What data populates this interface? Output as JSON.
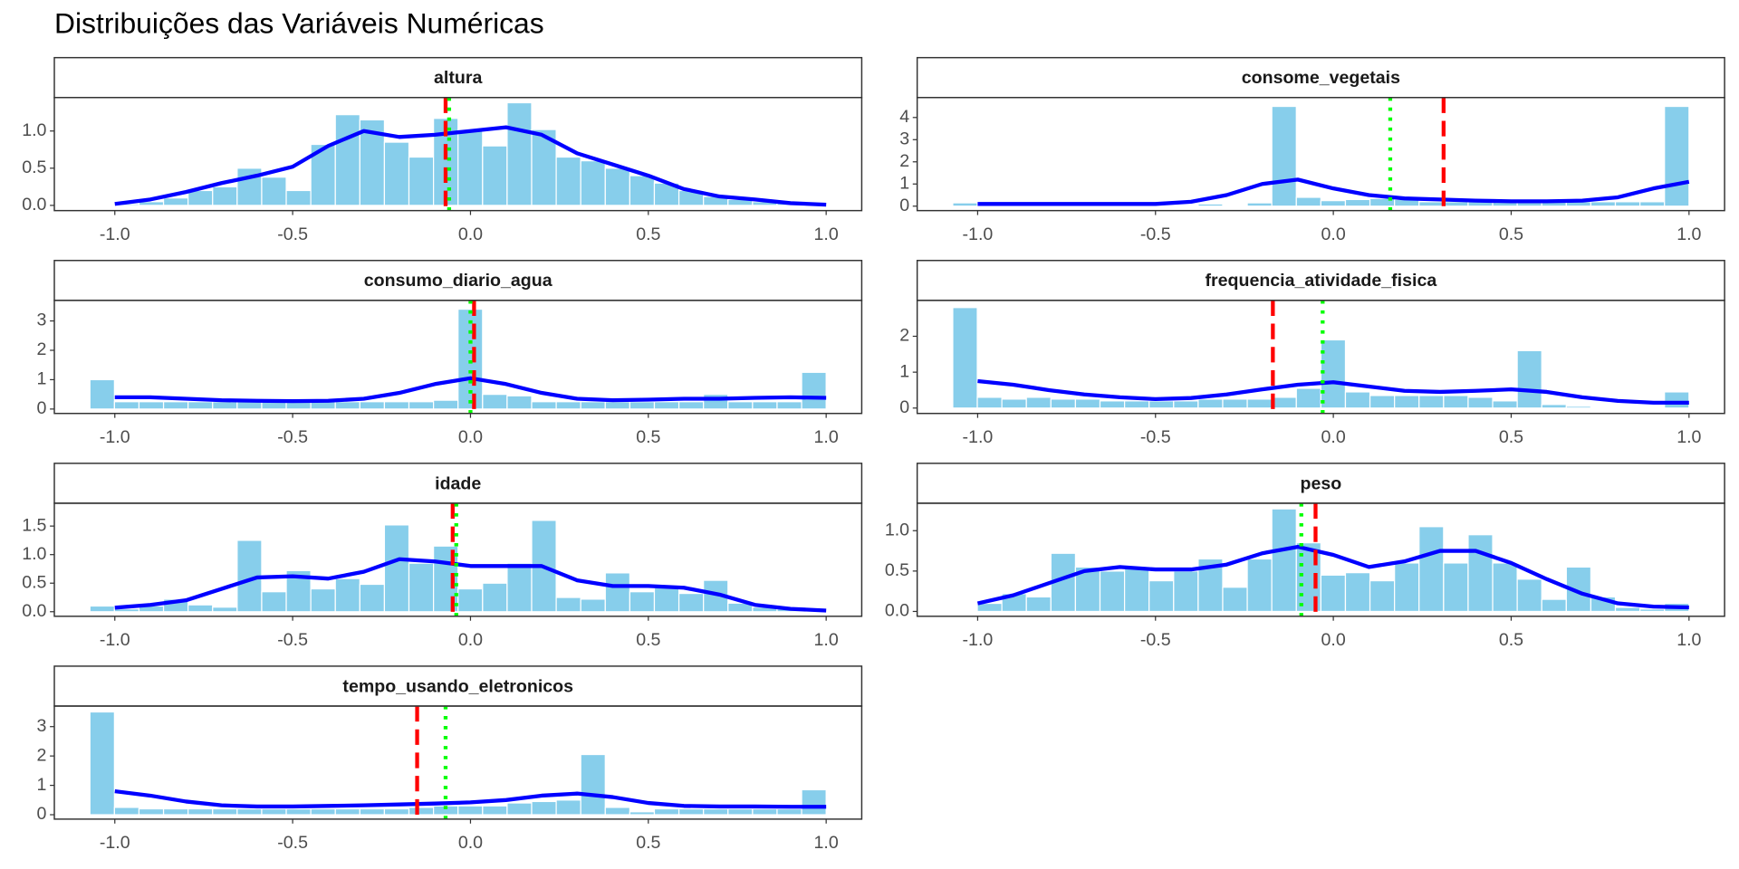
{
  "title": "Distribuições das Variáveis Numéricas",
  "chart_data": [
    {
      "type": "histogram",
      "title": "altura",
      "color": "#87ceeb",
      "line_color": "#0000ff",
      "mean_color": "#ff0000",
      "median_color": "#00ff00",
      "bins": [
        -1.07,
        -1.001,
        -0.932,
        -0.863,
        -0.794,
        -0.725,
        -0.656,
        -0.587,
        -0.518,
        -0.449,
        -0.38,
        -0.311,
        -0.242,
        -0.173,
        -0.104,
        -0.035,
        0.034,
        0.103,
        0.172,
        0.241,
        0.31,
        0.379,
        0.448,
        0.517,
        0.586,
        0.655,
        0.724,
        0.793,
        0.862,
        0.931,
        1.0
      ],
      "values": [
        0,
        0.02,
        0.05,
        0.1,
        0.2,
        0.25,
        0.5,
        0.38,
        0.2,
        0.82,
        1.22,
        1.15,
        0.85,
        0.65,
        1.17,
        1.0,
        0.8,
        1.38,
        1.02,
        0.65,
        0.6,
        0.5,
        0.4,
        0.3,
        0.2,
        0.12,
        0.08,
        0.05,
        0.03,
        0.02
      ],
      "density_x": [
        -1,
        -0.9,
        -0.8,
        -0.7,
        -0.6,
        -0.5,
        -0.4,
        -0.3,
        -0.2,
        -0.1,
        0,
        0.1,
        0.2,
        0.3,
        0.4,
        0.5,
        0.6,
        0.7,
        0.8,
        0.9,
        1
      ],
      "density_y": [
        0.02,
        0.08,
        0.18,
        0.3,
        0.4,
        0.52,
        0.8,
        1.0,
        0.92,
        0.95,
        1.0,
        1.05,
        0.95,
        0.7,
        0.55,
        0.4,
        0.22,
        0.12,
        0.08,
        0.03,
        0.01
      ],
      "mean": -0.07,
      "median": -0.06,
      "xlim": [
        -1.17,
        1.1
      ],
      "xticks": [
        {
          "value": -1,
          "label": "-1.0"
        },
        -0.5,
        {
          "value": 0,
          "label": "0.0"
        },
        0.5,
        {
          "value": 1,
          "label": "1.0"
        }
      ],
      "ylim": [
        -0.07,
        1.45
      ],
      "yticks": [
        {
          "value": 0,
          "label": "0.0"
        },
        0.5,
        {
          "value": 1,
          "label": "1.0"
        }
      ]
    },
    {
      "type": "histogram",
      "title": "consome_vegetais",
      "color": "#87ceeb",
      "line_color": "#0000ff",
      "mean_color": "#ff0000",
      "median_color": "#00ff00",
      "bins": [
        -1.07,
        -1.001,
        -0.932,
        -0.863,
        -0.794,
        -0.725,
        -0.656,
        -0.587,
        -0.518,
        -0.449,
        -0.38,
        -0.311,
        -0.242,
        -0.173,
        -0.104,
        -0.035,
        0.034,
        0.103,
        0.172,
        0.241,
        0.31,
        0.379,
        0.448,
        0.517,
        0.586,
        0.655,
        0.724,
        0.793,
        0.862,
        0.931,
        1.0
      ],
      "values": [
        0.15,
        0.02,
        0.02,
        0.02,
        0.02,
        0.02,
        0.02,
        0.02,
        0.02,
        0.02,
        0.1,
        0.02,
        0.15,
        4.5,
        0.4,
        0.25,
        0.3,
        0.35,
        0.3,
        0.2,
        0.2,
        0.2,
        0.2,
        0.2,
        0.2,
        0.2,
        0.2,
        0.2,
        0.2,
        4.5
      ],
      "density_x": [
        -1,
        -0.9,
        -0.8,
        -0.7,
        -0.6,
        -0.5,
        -0.4,
        -0.3,
        -0.2,
        -0.1,
        0,
        0.1,
        0.2,
        0.3,
        0.4,
        0.5,
        0.6,
        0.7,
        0.8,
        0.9,
        1
      ],
      "density_y": [
        0.1,
        0.1,
        0.1,
        0.1,
        0.1,
        0.1,
        0.2,
        0.5,
        1.0,
        1.2,
        0.8,
        0.5,
        0.35,
        0.3,
        0.25,
        0.22,
        0.22,
        0.25,
        0.4,
        0.8,
        1.1
      ],
      "mean": 0.31,
      "median": 0.16,
      "xlim": [
        -1.17,
        1.1
      ],
      "xticks": [
        {
          "value": -1,
          "label": "-1.0"
        },
        -0.5,
        {
          "value": 0,
          "label": "0.0"
        },
        0.5,
        {
          "value": 1,
          "label": "1.0"
        }
      ],
      "ylim": [
        -0.2,
        4.9
      ],
      "yticks": [
        0,
        1,
        2,
        3,
        4
      ]
    },
    {
      "type": "histogram",
      "title": "consumo_diario_agua",
      "color": "#87ceeb",
      "line_color": "#0000ff",
      "mean_color": "#ff0000",
      "median_color": "#00ff00",
      "bins": [
        -1.07,
        -1.001,
        -0.932,
        -0.863,
        -0.794,
        -0.725,
        -0.656,
        -0.587,
        -0.518,
        -0.449,
        -0.38,
        -0.311,
        -0.242,
        -0.173,
        -0.104,
        -0.035,
        0.034,
        0.103,
        0.172,
        0.241,
        0.31,
        0.379,
        0.448,
        0.517,
        0.586,
        0.655,
        0.724,
        0.793,
        0.862,
        0.931,
        1.0
      ],
      "values": [
        1.0,
        0.25,
        0.25,
        0.25,
        0.25,
        0.25,
        0.25,
        0.25,
        0.25,
        0.25,
        0.25,
        0.25,
        0.25,
        0.25,
        0.3,
        3.4,
        0.5,
        0.45,
        0.25,
        0.25,
        0.25,
        0.25,
        0.25,
        0.25,
        0.25,
        0.5,
        0.25,
        0.25,
        0.25,
        1.25
      ],
      "density_x": [
        -1,
        -0.9,
        -0.8,
        -0.7,
        -0.6,
        -0.5,
        -0.4,
        -0.3,
        -0.2,
        -0.1,
        0,
        0.1,
        0.2,
        0.3,
        0.4,
        0.5,
        0.6,
        0.7,
        0.8,
        0.9,
        1
      ],
      "density_y": [
        0.4,
        0.4,
        0.35,
        0.3,
        0.28,
        0.27,
        0.28,
        0.35,
        0.55,
        0.85,
        1.05,
        0.85,
        0.55,
        0.35,
        0.3,
        0.32,
        0.35,
        0.35,
        0.38,
        0.4,
        0.38
      ],
      "mean": 0.01,
      "median": 0.0,
      "xlim": [
        -1.17,
        1.1
      ],
      "xticks": [
        {
          "value": -1,
          "label": "-1.0"
        },
        -0.5,
        {
          "value": 0,
          "label": "0.0"
        },
        0.5,
        {
          "value": 1,
          "label": "1.0"
        }
      ],
      "ylim": [
        -0.15,
        3.7
      ],
      "yticks": [
        0,
        1,
        2,
        3
      ]
    },
    {
      "type": "histogram",
      "title": "frequencia_atividade_fisica",
      "color": "#87ceeb",
      "line_color": "#0000ff",
      "mean_color": "#ff0000",
      "median_color": "#00ff00",
      "bins": [
        -1.07,
        -1.001,
        -0.932,
        -0.863,
        -0.794,
        -0.725,
        -0.656,
        -0.587,
        -0.518,
        -0.449,
        -0.38,
        -0.311,
        -0.242,
        -0.173,
        -0.104,
        -0.035,
        0.034,
        0.103,
        0.172,
        0.241,
        0.31,
        0.379,
        0.448,
        0.517,
        0.586,
        0.655,
        0.724,
        0.793,
        0.862,
        0.931,
        1.0
      ],
      "values": [
        2.8,
        0.3,
        0.25,
        0.3,
        0.25,
        0.25,
        0.2,
        0.2,
        0.2,
        0.2,
        0.25,
        0.25,
        0.25,
        0.3,
        0.55,
        1.9,
        0.45,
        0.35,
        0.35,
        0.35,
        0.35,
        0.3,
        0.2,
        1.6,
        0.1,
        0.05,
        0.02,
        0.02,
        0.02,
        0.45
      ],
      "density_x": [
        -1,
        -0.9,
        -0.8,
        -0.7,
        -0.6,
        -0.5,
        -0.4,
        -0.3,
        -0.2,
        -0.1,
        0,
        0.1,
        0.2,
        0.3,
        0.4,
        0.5,
        0.6,
        0.7,
        0.8,
        0.9,
        1
      ],
      "density_y": [
        0.75,
        0.65,
        0.5,
        0.38,
        0.3,
        0.25,
        0.28,
        0.38,
        0.52,
        0.65,
        0.72,
        0.6,
        0.48,
        0.45,
        0.48,
        0.52,
        0.45,
        0.3,
        0.2,
        0.15,
        0.15
      ],
      "mean": -0.17,
      "median": -0.03,
      "xlim": [
        -1.17,
        1.1
      ],
      "xticks": [
        {
          "value": -1,
          "label": "-1.0"
        },
        -0.5,
        {
          "value": 0,
          "label": "0.0"
        },
        0.5,
        {
          "value": 1,
          "label": "1.0"
        }
      ],
      "ylim": [
        -0.15,
        3.0
      ],
      "yticks": [
        0,
        1,
        2
      ]
    },
    {
      "type": "histogram",
      "title": "idade",
      "color": "#87ceeb",
      "line_color": "#0000ff",
      "mean_color": "#ff0000",
      "median_color": "#00ff00",
      "bins": [
        -1.07,
        -1.001,
        -0.932,
        -0.863,
        -0.794,
        -0.725,
        -0.656,
        -0.587,
        -0.518,
        -0.449,
        -0.38,
        -0.311,
        -0.242,
        -0.173,
        -0.104,
        -0.035,
        0.034,
        0.103,
        0.172,
        0.241,
        0.31,
        0.379,
        0.448,
        0.517,
        0.586,
        0.655,
        0.724,
        0.793,
        0.862,
        0.931,
        1.0
      ],
      "values": [
        0.1,
        0.05,
        0.1,
        0.22,
        0.12,
        0.08,
        1.25,
        0.35,
        0.72,
        0.4,
        0.58,
        0.48,
        1.52,
        0.85,
        1.15,
        0.4,
        0.5,
        0.85,
        1.6,
        0.25,
        0.22,
        0.68,
        0.35,
        0.42,
        0.32,
        0.55,
        0.15,
        0.08,
        0.05,
        0.03
      ],
      "density_x": [
        -1,
        -0.9,
        -0.8,
        -0.7,
        -0.6,
        -0.5,
        -0.4,
        -0.3,
        -0.2,
        -0.1,
        0,
        0.1,
        0.2,
        0.3,
        0.4,
        0.5,
        0.6,
        0.7,
        0.8,
        0.9,
        1
      ],
      "density_y": [
        0.07,
        0.12,
        0.2,
        0.4,
        0.6,
        0.62,
        0.58,
        0.7,
        0.92,
        0.88,
        0.8,
        0.8,
        0.8,
        0.55,
        0.45,
        0.45,
        0.42,
        0.3,
        0.12,
        0.05,
        0.02
      ],
      "mean": -0.05,
      "median": -0.04,
      "xlim": [
        -1.17,
        1.1
      ],
      "xticks": [
        {
          "value": -1,
          "label": "-1.0"
        },
        -0.5,
        {
          "value": 0,
          "label": "0.0"
        },
        0.5,
        {
          "value": 1,
          "label": "1.0"
        }
      ],
      "ylim": [
        -0.08,
        1.9
      ],
      "yticks": [
        {
          "value": 0,
          "label": "0.0"
        },
        0.5,
        {
          "value": 1,
          "label": "1.0"
        },
        1.5
      ]
    },
    {
      "type": "histogram",
      "title": "peso",
      "color": "#87ceeb",
      "line_color": "#0000ff",
      "mean_color": "#ff0000",
      "median_color": "#00ff00",
      "bins": [
        -1.07,
        -1.001,
        -0.932,
        -0.863,
        -0.794,
        -0.725,
        -0.656,
        -0.587,
        -0.518,
        -0.449,
        -0.38,
        -0.311,
        -0.242,
        -0.173,
        -0.104,
        -0.035,
        0.034,
        0.103,
        0.172,
        0.241,
        0.31,
        0.379,
        0.448,
        0.517,
        0.586,
        0.655,
        0.724,
        0.793,
        0.862,
        0.931,
        1.0
      ],
      "values": [
        0,
        0.1,
        0.22,
        0.18,
        0.72,
        0.55,
        0.5,
        0.55,
        0.38,
        0.5,
        0.65,
        0.3,
        0.65,
        1.27,
        0.85,
        0.45,
        0.48,
        0.38,
        0.6,
        1.05,
        0.6,
        0.95,
        0.6,
        0.4,
        0.15,
        0.55,
        0.18,
        0.05,
        0.03,
        0.1
      ],
      "density_x": [
        -1,
        -0.9,
        -0.8,
        -0.7,
        -0.6,
        -0.5,
        -0.4,
        -0.3,
        -0.2,
        -0.1,
        0,
        0.1,
        0.2,
        0.3,
        0.4,
        0.5,
        0.6,
        0.7,
        0.8,
        0.9,
        1
      ],
      "density_y": [
        0.1,
        0.2,
        0.35,
        0.5,
        0.55,
        0.52,
        0.52,
        0.58,
        0.72,
        0.8,
        0.7,
        0.55,
        0.62,
        0.75,
        0.75,
        0.6,
        0.4,
        0.22,
        0.1,
        0.06,
        0.05
      ],
      "mean": -0.05,
      "median": -0.09,
      "xlim": [
        -1.17,
        1.1
      ],
      "xticks": [
        {
          "value": -1,
          "label": "-1.0"
        },
        -0.5,
        {
          "value": 0,
          "label": "0.0"
        },
        0.5,
        {
          "value": 1,
          "label": "1.0"
        }
      ],
      "ylim": [
        -0.06,
        1.34
      ],
      "yticks": [
        {
          "value": 0,
          "label": "0.0"
        },
        0.5,
        {
          "value": 1,
          "label": "1.0"
        }
      ]
    },
    {
      "type": "histogram",
      "title": "tempo_usando_eletronicos",
      "color": "#87ceeb",
      "line_color": "#0000ff",
      "mean_color": "#ff0000",
      "median_color": "#00ff00",
      "bins": [
        -1.07,
        -1.001,
        -0.932,
        -0.863,
        -0.794,
        -0.725,
        -0.656,
        -0.587,
        -0.518,
        -0.449,
        -0.38,
        -0.311,
        -0.242,
        -0.173,
        -0.104,
        -0.035,
        0.034,
        0.103,
        0.172,
        0.241,
        0.31,
        0.379,
        0.448,
        0.517,
        0.586,
        0.655,
        0.724,
        0.793,
        0.862,
        0.931,
        1.0
      ],
      "values": [
        3.5,
        0.25,
        0.2,
        0.2,
        0.2,
        0.2,
        0.2,
        0.2,
        0.2,
        0.2,
        0.2,
        0.2,
        0.2,
        0.25,
        0.3,
        0.3,
        0.3,
        0.4,
        0.45,
        0.5,
        2.05,
        0.25,
        0.1,
        0.2,
        0.2,
        0.2,
        0.2,
        0.2,
        0.2,
        0.85
      ],
      "density_x": [
        -1,
        -0.9,
        -0.8,
        -0.7,
        -0.6,
        -0.5,
        -0.4,
        -0.3,
        -0.2,
        -0.1,
        0,
        0.1,
        0.2,
        0.3,
        0.4,
        0.5,
        0.6,
        0.7,
        0.8,
        0.9,
        1
      ],
      "density_y": [
        0.8,
        0.65,
        0.45,
        0.32,
        0.28,
        0.28,
        0.3,
        0.32,
        0.35,
        0.38,
        0.42,
        0.5,
        0.65,
        0.72,
        0.6,
        0.4,
        0.3,
        0.28,
        0.28,
        0.27,
        0.27
      ],
      "mean": -0.15,
      "median": -0.07,
      "xlim": [
        -1.17,
        1.1
      ],
      "xticks": [
        {
          "value": -1,
          "label": "-1.0"
        },
        -0.5,
        {
          "value": 0,
          "label": "0.0"
        },
        0.5,
        {
          "value": 1,
          "label": "1.0"
        }
      ],
      "ylim": [
        -0.15,
        3.7
      ],
      "yticks": [
        0,
        1,
        2,
        3
      ]
    }
  ]
}
